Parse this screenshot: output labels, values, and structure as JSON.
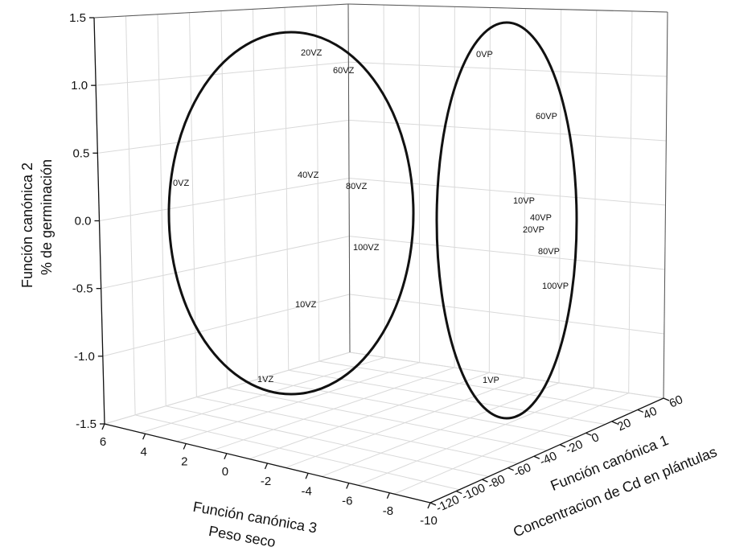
{
  "chart_data": {
    "type": "scatter",
    "projection": "3d",
    "grid": true,
    "axes": {
      "x": {
        "title_line1": "Función canónica 1",
        "title_line2": "Concentracion de Cd en plántulas",
        "ticks": [
          "-120",
          "-100",
          "-80",
          "-60",
          "-40",
          "-20",
          "0",
          "20",
          "40",
          "60"
        ],
        "range": [
          -120,
          60
        ]
      },
      "y": {
        "title_line1": "Función canónica 2",
        "title_line2": "% de germinación",
        "ticks": [
          "-1.5",
          "-1.0",
          "-0.5",
          "0.0",
          "0.5",
          "1.0",
          "1.5"
        ],
        "range": [
          -1.5,
          1.5
        ]
      },
      "z": {
        "title_line1": "Función canónica 3",
        "title_line2": "Peso seco",
        "ticks": [
          "6",
          "4",
          "2",
          "0",
          "-2",
          "-4",
          "-6",
          "-8",
          "-10"
        ],
        "range": [
          6,
          -10
        ]
      }
    },
    "series": [
      {
        "group": "VZ",
        "points": [
          {
            "label": "0VZ",
            "y": 0.3
          },
          {
            "label": "1VZ",
            "y": -1.4
          },
          {
            "label": "10VZ",
            "y": -0.6
          },
          {
            "label": "20VZ",
            "y": 1.3
          },
          {
            "label": "40VZ",
            "y": 0.35
          },
          {
            "label": "60VZ",
            "y": 1.15
          },
          {
            "label": "80VZ",
            "y": 0.3
          },
          {
            "label": "100VZ",
            "y": -0.1
          }
        ]
      },
      {
        "group": "VP",
        "points": [
          {
            "label": "0VP",
            "y": 1.35
          },
          {
            "label": "1VP",
            "y": -0.9
          },
          {
            "label": "10VP",
            "y": 0.2
          },
          {
            "label": "20VP",
            "y": 0.0
          },
          {
            "label": "40VP",
            "y": 0.05
          },
          {
            "label": "60VP",
            "y": 0.85
          },
          {
            "label": "80VP",
            "y": -0.1
          },
          {
            "label": "100VP",
            "y": -0.3
          }
        ]
      }
    ],
    "annotations": [
      "ellipse around VZ group",
      "ellipse around VP group"
    ]
  }
}
